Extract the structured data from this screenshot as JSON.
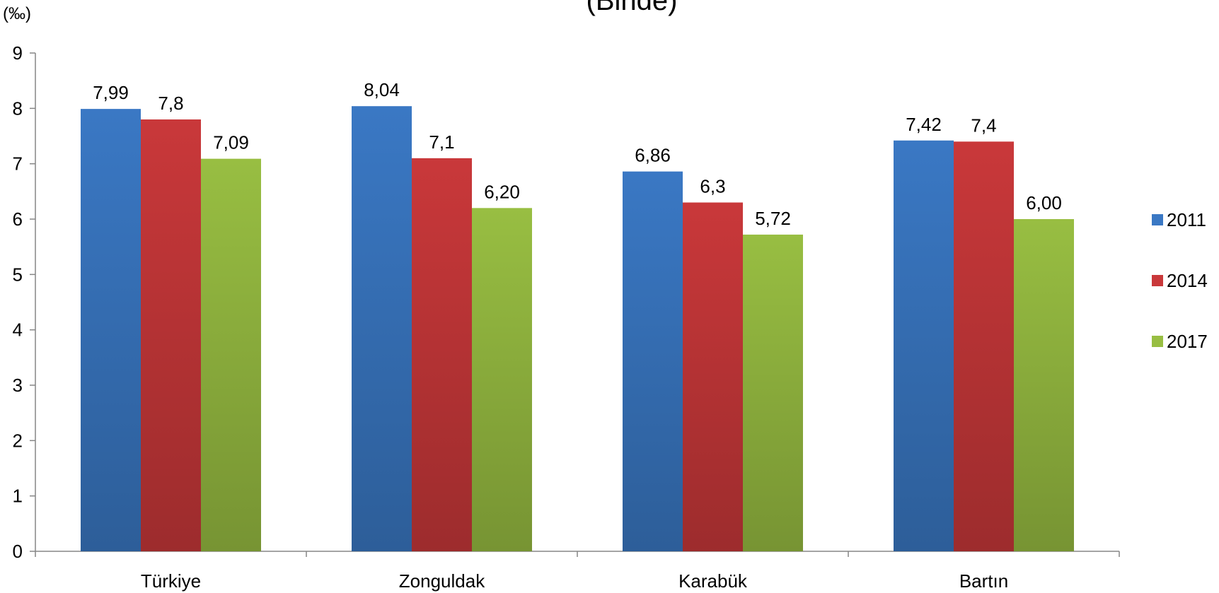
{
  "chart_data": {
    "type": "bar",
    "title": "(Binde)",
    "unit_label": "(‰)",
    "categories": [
      "Türkiye",
      "Zonguldak",
      "Karabük",
      "Bartın"
    ],
    "series": [
      {
        "name": "2011",
        "color": "#3A78C4",
        "values": [
          7.99,
          8.04,
          6.86,
          7.42
        ],
        "labels": [
          "7,99",
          "8,04",
          "6,86",
          "7,42"
        ]
      },
      {
        "name": "2014",
        "color": "#C9383A",
        "values": [
          7.8,
          7.1,
          6.3,
          7.4
        ],
        "labels": [
          "7,8",
          "7,1",
          "6,3",
          "7,4"
        ]
      },
      {
        "name": "2017",
        "color": "#98BE42",
        "values": [
          7.09,
          6.2,
          5.72,
          6.0
        ],
        "labels": [
          "7,09",
          "6,20",
          "5,72",
          "6,00"
        ]
      }
    ],
    "ylim": [
      0,
      9
    ],
    "yticks": [
      0,
      1,
      2,
      3,
      4,
      5,
      6,
      7,
      8,
      9
    ],
    "grid": false,
    "legend_position": "right"
  }
}
